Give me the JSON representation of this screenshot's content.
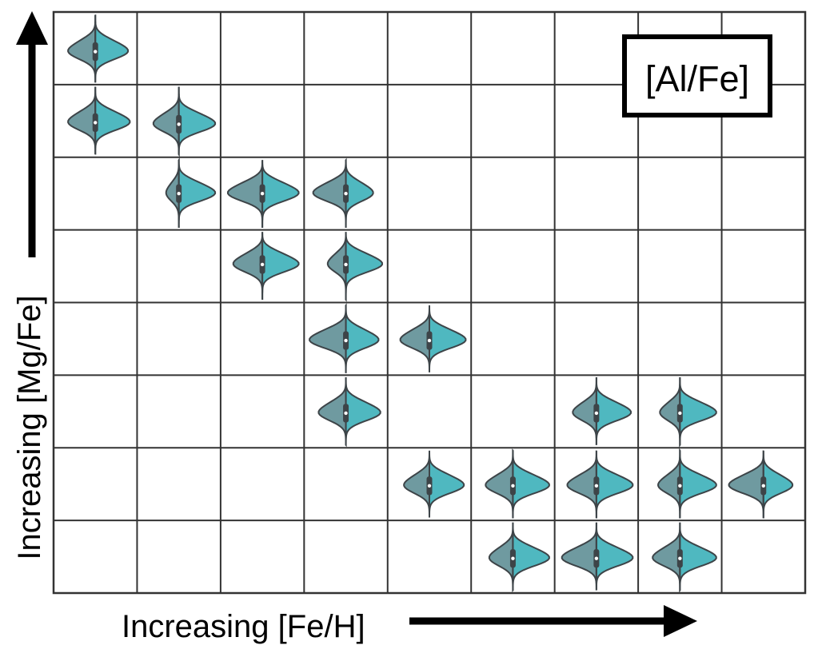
{
  "chart_data": {
    "type": "violin-grid",
    "title_box": "[Al/Fe]",
    "xlabel": "Increasing [Fe/H]",
    "ylabel": "Increasing [Mg/Fe]",
    "grid": {
      "columns": 9,
      "rows": 8
    },
    "split_colors": {
      "left": "#6f9aa0",
      "right": "#4fb8c0"
    },
    "outline_color": "#3d4448",
    "cells": [
      {
        "col": 0,
        "row": 0,
        "offset": 0.1,
        "lwid": 0.75,
        "rwid": 0.9
      },
      {
        "col": 0,
        "row": 1,
        "offset": 0.05,
        "lwid": 0.75,
        "rwid": 0.95
      },
      {
        "col": 1,
        "row": 1,
        "offset": 0.1,
        "lwid": 0.7,
        "rwid": 1.0
      },
      {
        "col": 1,
        "row": 2,
        "offset": 0.0,
        "lwid": 0.35,
        "rwid": 1.0
      },
      {
        "col": 2,
        "row": 2,
        "offset": 0.0,
        "lwid": 0.95,
        "rwid": 1.0
      },
      {
        "col": 3,
        "row": 2,
        "offset": 0.0,
        "lwid": 0.9,
        "rwid": 0.75
      },
      {
        "col": 2,
        "row": 3,
        "offset": -0.05,
        "lwid": 0.8,
        "rwid": 1.0
      },
      {
        "col": 3,
        "row": 3,
        "offset": -0.05,
        "lwid": 0.5,
        "rwid": 1.0
      },
      {
        "col": 3,
        "row": 4,
        "offset": 0.05,
        "lwid": 1.0,
        "rwid": 0.9
      },
      {
        "col": 4,
        "row": 4,
        "offset": 0.05,
        "lwid": 0.8,
        "rwid": 1.0
      },
      {
        "col": 3,
        "row": 5,
        "offset": 0.05,
        "lwid": 0.75,
        "rwid": 0.95
      },
      {
        "col": 6,
        "row": 5,
        "offset": 0.05,
        "lwid": 0.65,
        "rwid": 0.95
      },
      {
        "col": 7,
        "row": 5,
        "offset": 0.05,
        "lwid": 0.55,
        "rwid": 1.0
      },
      {
        "col": 4,
        "row": 6,
        "offset": 0.05,
        "lwid": 0.7,
        "rwid": 0.95
      },
      {
        "col": 5,
        "row": 6,
        "offset": 0.05,
        "lwid": 0.75,
        "rwid": 1.0
      },
      {
        "col": 6,
        "row": 6,
        "offset": 0.05,
        "lwid": 0.8,
        "rwid": 1.0
      },
      {
        "col": 7,
        "row": 6,
        "offset": 0.05,
        "lwid": 0.6,
        "rwid": 1.0
      },
      {
        "col": 8,
        "row": 6,
        "offset": 0.05,
        "lwid": 0.95,
        "rwid": 0.8
      },
      {
        "col": 5,
        "row": 7,
        "offset": 0.05,
        "lwid": 0.65,
        "rwid": 1.0
      },
      {
        "col": 6,
        "row": 7,
        "offset": 0.05,
        "lwid": 0.95,
        "rwid": 1.0
      },
      {
        "col": 7,
        "row": 7,
        "offset": 0.05,
        "lwid": 0.75,
        "rwid": 1.0
      }
    ]
  }
}
